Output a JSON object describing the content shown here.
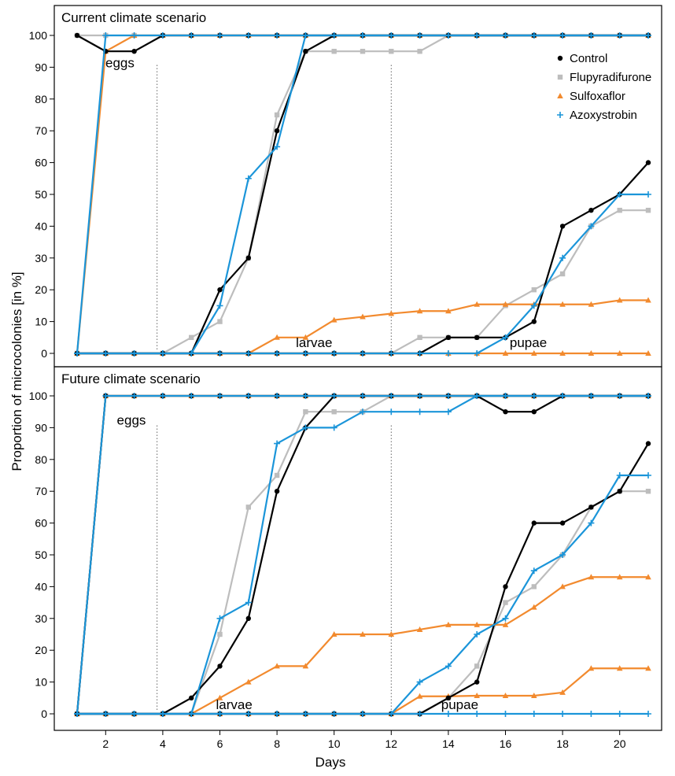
{
  "chart_data": {
    "type": "line",
    "xlabel": "Days",
    "ylabel": "Proportion of microcolonies [in %]",
    "xlim": [
      1,
      21
    ],
    "ylim": [
      0,
      100
    ],
    "x_ticks": [
      2,
      4,
      6,
      8,
      10,
      12,
      14,
      16,
      18,
      20
    ],
    "y_ticks": [
      0,
      10,
      20,
      30,
      40,
      50,
      60,
      70,
      80,
      90,
      100
    ],
    "x": [
      1,
      2,
      3,
      4,
      5,
      6,
      7,
      8,
      9,
      10,
      11,
      12,
      13,
      14,
      15,
      16,
      17,
      18,
      19,
      20,
      21
    ],
    "stage_dividers": [
      3.8,
      12
    ],
    "legend": {
      "placement": "top-right",
      "entries": [
        {
          "label": "Control",
          "marker": "circle",
          "color": "#000000"
        },
        {
          "label": "Flupyradifurone",
          "marker": "square",
          "color": "#bdbdbd"
        },
        {
          "label": "Sulfoxaflor",
          "marker": "triangle",
          "color": "#f28a2e"
        },
        {
          "label": "Azoxystrobin",
          "marker": "plus",
          "color": "#1b95d9"
        }
      ]
    },
    "panels": [
      {
        "title": "Current climate scenario",
        "stage_labels": [
          {
            "text": "eggs",
            "x": 2.5,
            "y": 90
          },
          {
            "text": "larvae",
            "x": 9.3,
            "y": 2
          },
          {
            "text": "pupae",
            "x": 16.8,
            "y": 2
          }
        ],
        "series": [
          {
            "name": "Control",
            "key": "control",
            "lines": [
              [
                100,
                95,
                95,
                100,
                100,
                100,
                100,
                100,
                100,
                100,
                100,
                100,
                100,
                100,
                100,
                100,
                100,
                100,
                100,
                100,
                100
              ],
              [
                0,
                0,
                0,
                0,
                0,
                20,
                30,
                70,
                95,
                100,
                100,
                100,
                100,
                100,
                100,
                100,
                100,
                100,
                100,
                100,
                100
              ],
              [
                0,
                0,
                0,
                0,
                0,
                0,
                0,
                0,
                0,
                0,
                0,
                0,
                0,
                5,
                5,
                5,
                10,
                40,
                45,
                50,
                60
              ]
            ]
          },
          {
            "name": "Flupyradifurone",
            "key": "flupyradifurone",
            "lines": [
              [
                100,
                100,
                100,
                100,
                100,
                100,
                100,
                100,
                100,
                100,
                100,
                100,
                100,
                100,
                100,
                100,
                100,
                100,
                100,
                100,
                100
              ],
              [
                0,
                0,
                0,
                0,
                5,
                10,
                30,
                75,
                95,
                95,
                95,
                95,
                95,
                100,
                100,
                100,
                100,
                100,
                100,
                100,
                100
              ],
              [
                0,
                0,
                0,
                0,
                0,
                0,
                0,
                0,
                0,
                0,
                0,
                0,
                5,
                5,
                5,
                15,
                20,
                25,
                40,
                45,
                45
              ]
            ]
          },
          {
            "name": "Sulfoxaflor",
            "key": "sulfoxaflor",
            "lines": [
              [
                0,
                95,
                100,
                100,
                100,
                100,
                100,
                100,
                100,
                100,
                100,
                100,
                100,
                100,
                100,
                100,
                100,
                100,
                100,
                100,
                100
              ],
              [
                0,
                0,
                0,
                0,
                0,
                0,
                0,
                5,
                5,
                10.5,
                11.5,
                12.5,
                13.3,
                13.3,
                15.4,
                15.4,
                15.4,
                15.4,
                15.4,
                16.7,
                16.7
              ],
              [
                0,
                0,
                0,
                0,
                0,
                0,
                0,
                0,
                0,
                0,
                0,
                0,
                0,
                0,
                0,
                0,
                0,
                0,
                0,
                0,
                0
              ]
            ]
          },
          {
            "name": "Azoxystrobin",
            "key": "azoxystrobin",
            "lines": [
              [
                0,
                100,
                100,
                100,
                100,
                100,
                100,
                100,
                100,
                100,
                100,
                100,
                100,
                100,
                100,
                100,
                100,
                100,
                100,
                100,
                100
              ],
              [
                0,
                0,
                0,
                0,
                0,
                15,
                55,
                65,
                100,
                100,
                100,
                100,
                100,
                100,
                100,
                100,
                100,
                100,
                100,
                100,
                100
              ],
              [
                0,
                0,
                0,
                0,
                0,
                0,
                0,
                0,
                0,
                0,
                0,
                0,
                0,
                0,
                0,
                5,
                15,
                30,
                40,
                50,
                50
              ]
            ]
          }
        ]
      },
      {
        "title": "Future climate scenario",
        "stage_labels": [
          {
            "text": "eggs",
            "x": 2.9,
            "y": 91
          },
          {
            "text": "larvae",
            "x": 6.5,
            "y": 1.5
          },
          {
            "text": "pupae",
            "x": 14.4,
            "y": 1.5
          }
        ],
        "series": [
          {
            "name": "Control",
            "key": "control",
            "lines": [
              [
                0,
                100,
                100,
                100,
                100,
                100,
                100,
                100,
                100,
                100,
                100,
                100,
                100,
                100,
                100,
                95,
                95,
                100,
                100,
                100,
                100
              ],
              [
                0,
                0,
                0,
                0,
                5,
                15,
                30,
                70,
                90,
                100,
                100,
                100,
                100,
                100,
                100,
                100,
                100,
                100,
                100,
                100,
                100
              ],
              [
                0,
                0,
                0,
                0,
                0,
                0,
                0,
                0,
                0,
                0,
                0,
                0,
                0,
                5,
                10,
                40,
                60,
                60,
                65,
                70,
                85
              ]
            ]
          },
          {
            "name": "Flupyradifurone",
            "key": "flupyradifurone",
            "lines": [
              [
                0,
                100,
                100,
                100,
                100,
                100,
                100,
                100,
                100,
                100,
                100,
                100,
                100,
                100,
                100,
                100,
                100,
                100,
                100,
                100,
                100
              ],
              [
                0,
                0,
                0,
                0,
                0,
                25,
                65,
                75,
                95,
                95,
                95,
                100,
                100,
                100,
                100,
                100,
                100,
                100,
                100,
                100,
                100
              ],
              [
                0,
                0,
                0,
                0,
                0,
                0,
                0,
                0,
                0,
                0,
                0,
                0,
                0,
                5,
                15,
                35,
                40,
                50,
                65,
                70,
                70
              ]
            ]
          },
          {
            "name": "Sulfoxaflor",
            "key": "sulfoxaflor",
            "lines": [
              [
                0,
                100,
                100,
                100,
                100,
                100,
                100,
                100,
                100,
                100,
                100,
                100,
                100,
                100,
                100,
                100,
                100,
                100,
                100,
                100,
                100
              ],
              [
                0,
                0,
                0,
                0,
                0,
                5,
                10,
                15,
                15,
                25,
                25,
                25,
                26.5,
                28,
                28,
                28,
                33.5,
                40,
                43,
                43,
                43
              ],
              [
                0,
                0,
                0,
                0,
                0,
                0,
                0,
                0,
                0,
                0,
                0,
                0,
                5.5,
                5.5,
                5.7,
                5.7,
                5.7,
                6.7,
                14.3,
                14.3,
                14.3
              ]
            ]
          },
          {
            "name": "Azoxystrobin",
            "key": "azoxystrobin",
            "lines": [
              [
                0,
                100,
                100,
                100,
                100,
                100,
                100,
                100,
                100,
                100,
                100,
                100,
                100,
                100,
                100,
                100,
                100,
                100,
                100,
                100,
                100
              ],
              [
                0,
                0,
                0,
                0,
                0,
                30,
                35,
                85,
                90,
                90,
                95,
                95,
                95,
                95,
                100,
                100,
                100,
                100,
                100,
                100,
                100
              ],
              [
                0,
                0,
                0,
                0,
                0,
                0,
                0,
                0,
                0,
                0,
                0,
                0,
                10,
                15,
                25,
                30,
                45,
                50,
                60,
                75,
                75
              ],
              [
                0,
                0,
                0,
                0,
                0,
                0,
                0,
                0,
                0,
                0,
                0,
                0,
                0,
                0,
                0,
                0,
                0,
                0,
                0,
                0,
                0
              ]
            ]
          }
        ]
      }
    ]
  }
}
